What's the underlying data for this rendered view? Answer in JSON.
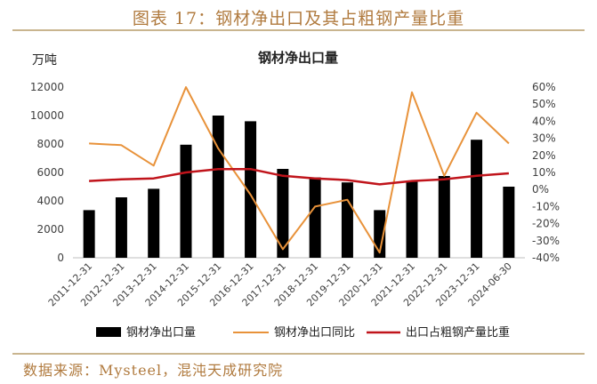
{
  "figure_title": "图表 17：钢材净出口及其占粗钢产量比重",
  "source": "数据来源：Mysteel，混沌天成研究院",
  "chart_data": {
    "type": "bar",
    "title": "钢材净出口量",
    "left_unit": "万吨",
    "categories": [
      "2011-12-31",
      "2012-12-31",
      "2013-12-31",
      "2014-12-31",
      "2015-12-31",
      "2016-12-31",
      "2017-12-31",
      "2018-12-31",
      "2019-12-31",
      "2020-12-31",
      "2021-12-31",
      "2022-12-31",
      "2023-12-31",
      "2024-06-30"
    ],
    "left_axis": {
      "min": 0,
      "max": 12000,
      "ticks": [
        "0",
        "2000",
        "4000",
        "6000",
        "8000",
        "10000",
        "12000"
      ]
    },
    "right_axis": {
      "min": -40,
      "max": 60,
      "ticks": [
        "-40%",
        "-30%",
        "-20%",
        "-10%",
        "0%",
        "10%",
        "20%",
        "30%",
        "40%",
        "50%",
        "60%"
      ]
    },
    "series": [
      {
        "name": "钢材净出口量",
        "type": "bar",
        "axis": "left",
        "color": "#000000",
        "values": [
          3350,
          4250,
          4850,
          7950,
          10000,
          9600,
          6250,
          5650,
          5300,
          3350,
          5350,
          5750,
          8300,
          5000
        ]
      },
      {
        "name": "钢材净出口同比",
        "type": "line",
        "axis": "right",
        "color": "#e8923a",
        "values": [
          27,
          26,
          14,
          63,
          24,
          -3,
          -35,
          -10,
          -6,
          -37,
          57,
          8,
          45,
          27
        ]
      },
      {
        "name": "出口占粗钢产量比重",
        "type": "line",
        "axis": "right",
        "color": "#c0141b",
        "values": [
          5,
          6,
          6.5,
          10,
          12,
          12,
          8,
          6.5,
          5.5,
          3,
          5,
          6,
          8,
          9.5
        ]
      }
    ],
    "legend_position": "bottom",
    "grid": false
  }
}
